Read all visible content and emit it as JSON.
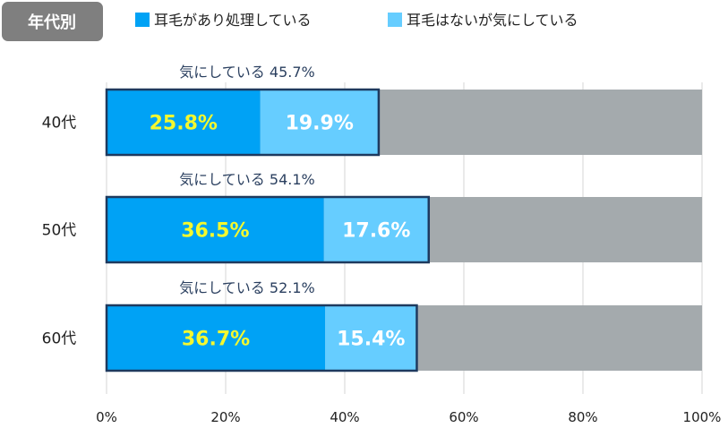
{
  "chart_data": {
    "type": "bar",
    "stacked": true,
    "orientation": "horizontal",
    "title": "年代別",
    "categories": [
      "40代",
      "50代",
      "60代"
    ],
    "series": [
      {
        "name": "耳毛があり処理している",
        "color": "#00a2f5",
        "values": [
          25.8,
          36.5,
          36.7
        ],
        "labels": [
          "25.8%",
          "36.5%",
          "36.7%"
        ]
      },
      {
        "name": "耳毛はないが気にしている",
        "color": "#66cdff",
        "values": [
          19.9,
          17.6,
          15.4
        ],
        "labels": [
          "19.9%",
          "17.6%",
          "15.4%"
        ]
      }
    ],
    "totals": [
      45.7,
      54.1,
      52.1
    ],
    "total_labels": [
      "気にしている 45.7%",
      "気にしている 54.1%",
      "気にしている 52.1%"
    ],
    "xlim": [
      0,
      100
    ],
    "xticks": [
      0,
      20,
      40,
      60,
      80,
      100
    ],
    "xtick_labels": [
      "0%",
      "20%",
      "40%",
      "60%",
      "80%",
      "100%"
    ],
    "grid": true,
    "legend_position": "top",
    "colors": {
      "background_bar": "#a4aaad",
      "outline": "#1e3a5f",
      "series1_label": "#f4f82f",
      "series2_label": "#ffffff",
      "badge_background": "#7f7f7f",
      "badge_text": "#ffffff",
      "total_label": "#2a3f5f",
      "gridline": "#d5d5d5"
    }
  }
}
